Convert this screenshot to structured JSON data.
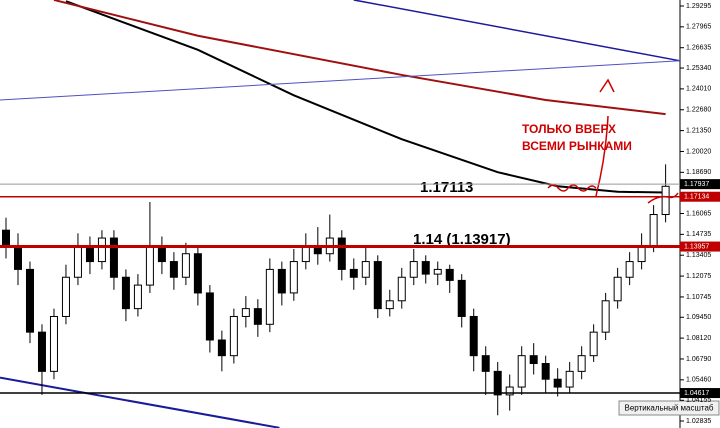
{
  "chart_data": {
    "type": "candlestick",
    "ylim": [
      1.02389,
      1.29677
    ],
    "xlim": [
      -0.5,
      56.2
    ],
    "yticks": [
      1.29295,
      1.27965,
      1.26635,
      {
        "value": 1.2534,
        "label": "1.25340"
      },
      {
        "value": 1.2401,
        "label": "1.24010"
      },
      {
        "value": 1.2268,
        "label": "1.22680"
      },
      {
        "value": 1.2135,
        "label": "1.21350"
      },
      {
        "value": 1.2002,
        "label": "1.20020"
      },
      {
        "value": 1.1869,
        "label": "1.18690"
      },
      1.16065,
      1.14735,
      1.13405,
      1.12075,
      1.10745,
      {
        "value": 1.0945,
        "label": "1.09450"
      },
      {
        "value": 1.0812,
        "label": "1.08120"
      },
      {
        "value": 1.0679,
        "label": "1.06790"
      },
      {
        "value": 1.0546,
        "label": "1.05460"
      },
      1.04155,
      1.02835
    ],
    "up_color": "#ffffff",
    "down_color": "#000000",
    "open": [
      1.15,
      1.14,
      1.125,
      1.085,
      1.06,
      1.095,
      1.12,
      1.14,
      1.13,
      1.145,
      1.12,
      1.1,
      1.115,
      1.14,
      1.13,
      1.12,
      1.135,
      1.11,
      1.08,
      1.07,
      1.095,
      1.1,
      1.09,
      1.125,
      1.11,
      1.13,
      1.14,
      1.135,
      1.145,
      1.125,
      1.12,
      1.13,
      1.1,
      1.105,
      1.12,
      1.13,
      1.122,
      1.125,
      1.118,
      1.095,
      1.07,
      1.06,
      1.045,
      1.05,
      1.07,
      1.065,
      1.055,
      1.05,
      1.06,
      1.07,
      1.085,
      1.105,
      1.12,
      1.13,
      1.14,
      1.16
    ],
    "high": [
      1.158,
      1.148,
      1.13,
      1.09,
      1.1,
      1.128,
      1.148,
      1.146,
      1.15,
      1.15,
      1.125,
      1.122,
      1.168,
      1.146,
      1.136,
      1.142,
      1.14,
      1.115,
      1.086,
      1.1,
      1.108,
      1.106,
      1.132,
      1.13,
      1.138,
      1.148,
      1.152,
      1.16,
      1.15,
      1.132,
      1.14,
      1.134,
      1.112,
      1.126,
      1.138,
      1.134,
      1.13,
      1.128,
      1.122,
      1.1,
      1.076,
      1.066,
      1.058,
      1.076,
      1.078,
      1.07,
      1.062,
      1.066,
      1.076,
      1.09,
      1.11,
      1.126,
      1.136,
      1.148,
      1.166,
      1.192
    ],
    "low": [
      1.132,
      1.115,
      1.078,
      1.045,
      1.055,
      1.09,
      1.115,
      1.122,
      1.125,
      1.112,
      1.092,
      1.095,
      1.11,
      1.122,
      1.112,
      1.115,
      1.102,
      1.072,
      1.06,
      1.065,
      1.088,
      1.082,
      1.085,
      1.102,
      1.105,
      1.125,
      1.128,
      1.13,
      1.118,
      1.112,
      1.115,
      1.094,
      1.095,
      1.1,
      1.115,
      1.116,
      1.115,
      1.11,
      1.088,
      1.06,
      1.045,
      1.032,
      1.035,
      1.045,
      1.058,
      1.046,
      1.044,
      1.046,
      1.055,
      1.066,
      1.08,
      1.1,
      1.115,
      1.125,
      1.136,
      1.155
    ],
    "close": [
      1.14,
      1.125,
      1.085,
      1.06,
      1.095,
      1.12,
      1.14,
      1.13,
      1.145,
      1.12,
      1.1,
      1.115,
      1.14,
      1.13,
      1.12,
      1.135,
      1.11,
      1.08,
      1.07,
      1.095,
      1.1,
      1.09,
      1.125,
      1.11,
      1.13,
      1.14,
      1.135,
      1.145,
      1.125,
      1.12,
      1.13,
      1.1,
      1.105,
      1.12,
      1.13,
      1.122,
      1.125,
      1.118,
      1.095,
      1.07,
      1.06,
      1.045,
      1.05,
      1.07,
      1.065,
      1.055,
      1.05,
      1.06,
      1.07,
      1.085,
      1.105,
      1.12,
      1.13,
      1.14,
      1.16,
      1.178
    ],
    "lines": [
      {
        "color": "#000000",
        "width": 2,
        "x": [
          5,
          16,
          24,
          33,
          41,
          46,
          51,
          55
        ],
        "values": [
          1.296,
          1.265,
          1.236,
          1.208,
          1.187,
          1.178,
          1.1745,
          1.174
        ]
      },
      {
        "color": "#a01010",
        "width": 2,
        "x": [
          4,
          16,
          33,
          45,
          55
        ],
        "values": [
          1.2968,
          1.274,
          1.249,
          1.233,
          1.224
        ]
      },
      {
        "color": "#1a1a9a",
        "width": 1.5,
        "x": [
          29,
          56.2
        ],
        "values": [
          1.2968,
          1.258
        ]
      },
      {
        "color": "#5050c0",
        "width": 1,
        "x": [
          -0.5,
          56.2
        ],
        "values": [
          1.233,
          1.258
        ]
      },
      {
        "color": "#1a1a9a",
        "width": 2,
        "x": [
          -0.5,
          22.8
        ],
        "values": [
          1.056,
          1.024
        ]
      }
    ],
    "levels": [
      {
        "value": 1.17937,
        "color": "#999999",
        "box": "#000000",
        "width": 1
      },
      {
        "value": 1.17134,
        "color": "#c00000",
        "box": "#c00000",
        "width": 1.5
      },
      {
        "value": 1.13957,
        "color": "#c00000",
        "box": "#c00000",
        "width": 3
      },
      {
        "value": 1.04617,
        "color": "#000000",
        "box": "#000000",
        "width": 1.5
      }
    ],
    "annotations": [
      "1.17113",
      "1.14 (1.13917)"
    ],
    "note_lines": [
      "ТОЛЬКО ВВЕРХ",
      "ВСЕМИ РЫНКАМИ"
    ],
    "button": "Вертикальный масштаб"
  }
}
